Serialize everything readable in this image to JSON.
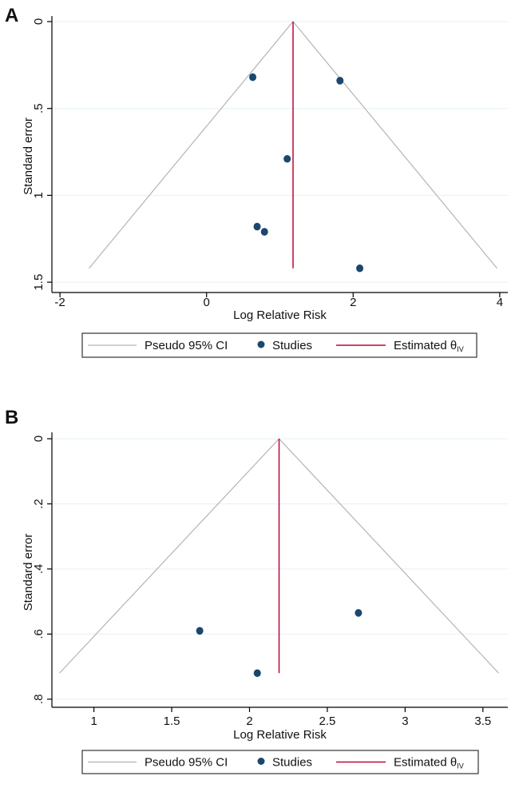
{
  "chart_data": [
    {
      "panel": "A",
      "type": "scatter",
      "subtype": "funnel plot",
      "xlabel": "Log Relative Risk",
      "ylabel": "Standard error",
      "xlim": [
        -2.11,
        4.11
      ],
      "ylim": [
        0,
        1.55
      ],
      "y_reversed": true,
      "xticks": [
        -2,
        0,
        2,
        4
      ],
      "xtick_labels": [
        "-2",
        "0",
        "2",
        "4"
      ],
      "yticks": [
        0,
        0.5,
        1,
        1.5
      ],
      "ytick_labels": [
        "0",
        ".5",
        "1",
        "1.5"
      ],
      "grid": "horizontal",
      "estimate": 1.18,
      "funnel_max_se": 1.42,
      "points": [
        {
          "x": 0.63,
          "y": 0.32
        },
        {
          "x": 1.82,
          "y": 0.34
        },
        {
          "x": 1.1,
          "y": 0.79
        },
        {
          "x": 0.69,
          "y": 1.18
        },
        {
          "x": 0.79,
          "y": 1.21
        },
        {
          "x": 2.09,
          "y": 1.42
        }
      ],
      "legend": {
        "placement": "bottom",
        "ci_label": "Pseudo 95% CI",
        "studies_label": "Studies",
        "estimate_label": "Estimated θ",
        "estimate_sub": "IV"
      }
    },
    {
      "panel": "B",
      "type": "scatter",
      "subtype": "funnel plot",
      "xlabel": "Log Relative Risk",
      "ylabel": "Standard error",
      "xlim": [
        0.73,
        3.66
      ],
      "ylim": [
        0,
        0.82
      ],
      "y_reversed": true,
      "xticks": [
        1,
        1.5,
        2,
        2.5,
        3,
        3.5
      ],
      "xtick_labels": [
        "1",
        "1.5",
        "2",
        "2.5",
        "3",
        "3.5"
      ],
      "yticks": [
        0,
        0.2,
        0.4,
        0.6,
        0.8
      ],
      "ytick_labels": [
        "0",
        ".2",
        ".4",
        ".6",
        ".8"
      ],
      "grid": "horizontal",
      "estimate": 2.19,
      "funnel_max_se": 0.72,
      "points": [
        {
          "x": 1.68,
          "y": 0.59
        },
        {
          "x": 2.05,
          "y": 0.72
        },
        {
          "x": 2.7,
          "y": 0.535
        }
      ],
      "legend": {
        "placement": "bottom",
        "ci_label": "Pseudo 95% CI",
        "studies_label": "Studies",
        "estimate_label": "Estimated θ",
        "estimate_sub": "IV"
      }
    }
  ],
  "colors": {
    "studies": "#1a476f",
    "estimate": "#c10534",
    "funnel": "#b4b4b4",
    "grid": "#e6f0f2"
  }
}
